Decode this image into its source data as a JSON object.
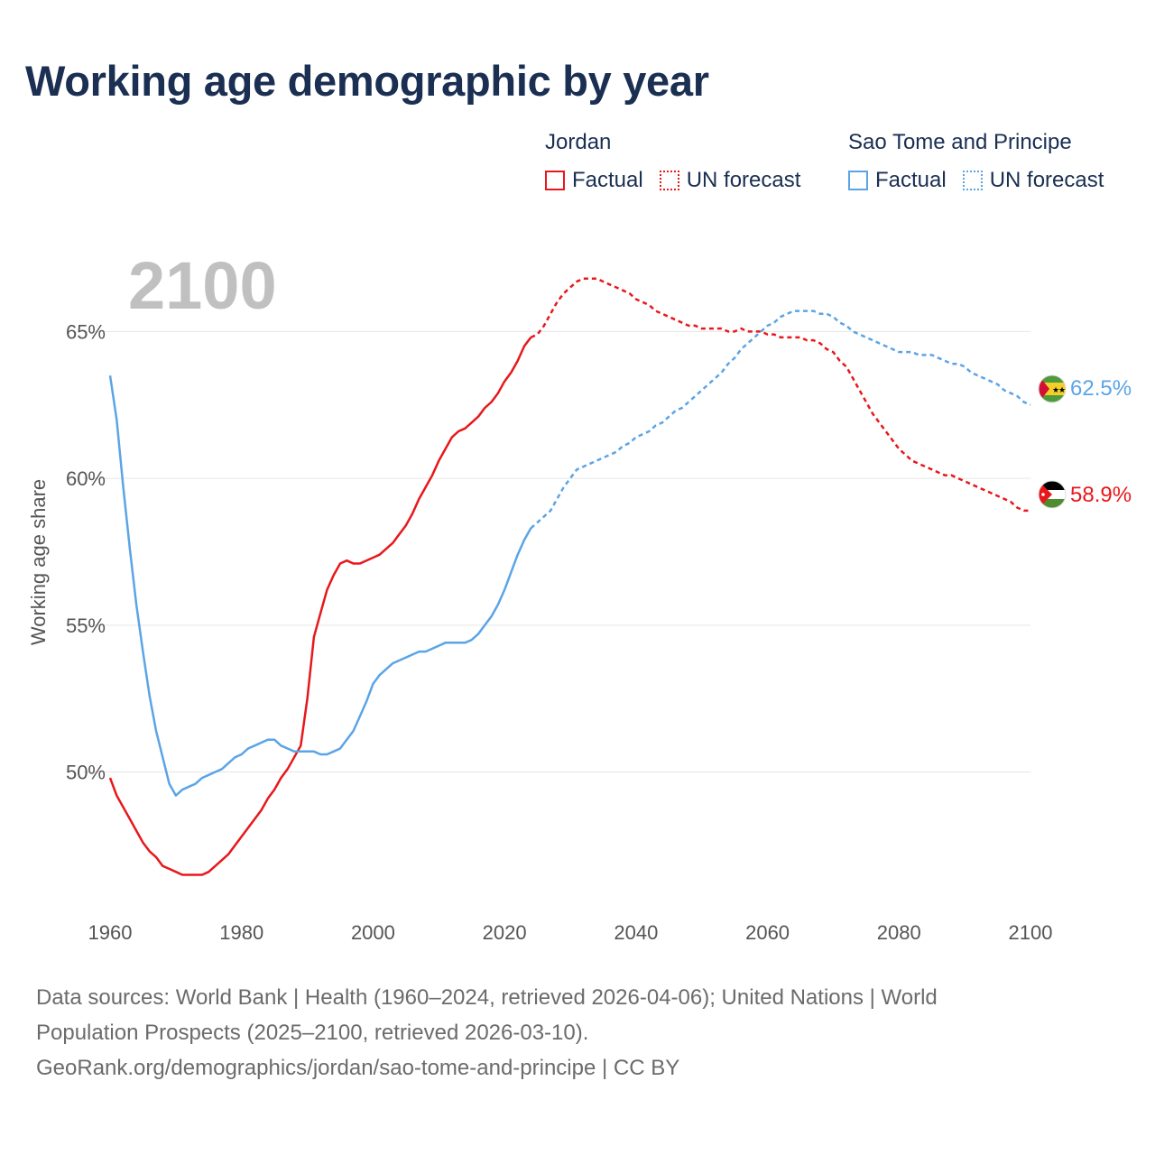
{
  "title": "Working age demographic by year",
  "legend": {
    "groups": [
      {
        "name": "Jordan",
        "color": "#e8171b",
        "factual": "Factual",
        "forecast": "UN forecast"
      },
      {
        "name": "Sao Tome and Principe",
        "color": "#5ba4e6",
        "factual": "Factual",
        "forecast": "UN forecast"
      }
    ]
  },
  "year_watermark": "2100",
  "footer": {
    "line1": "Data sources: World Bank | Health (1960–2024, retrieved 2026-04-06); United Nations | World",
    "line2": "Population Prospects (2025–2100, retrieved 2026-03-10).",
    "line3": "GeoRank.org/demographics/jordan/sao-tome-and-principe | CC BY"
  },
  "chart_data": {
    "type": "line",
    "title": "Working age demographic by year",
    "xlabel": "",
    "ylabel": "Working age share",
    "xlim": [
      1960,
      2100
    ],
    "ylim": [
      45.5,
      67.5
    ],
    "x_ticks": [
      1960,
      1980,
      2000,
      2020,
      2040,
      2060,
      2080,
      2100
    ],
    "y_ticks": [
      50,
      55,
      60,
      65
    ],
    "y_tick_labels": [
      "50%",
      "55%",
      "60%",
      "65%"
    ],
    "grid": true,
    "factual_end_year": 2024,
    "series": [
      {
        "name": "Jordan",
        "color": "#e8171b",
        "flag": "jordan",
        "end_label": "58.9%",
        "points": [
          [
            1960,
            49.8
          ],
          [
            1961,
            49.2
          ],
          [
            1962,
            48.8
          ],
          [
            1963,
            48.4
          ],
          [
            1964,
            48.0
          ],
          [
            1965,
            47.6
          ],
          [
            1966,
            47.3
          ],
          [
            1967,
            47.1
          ],
          [
            1968,
            46.8
          ],
          [
            1969,
            46.7
          ],
          [
            1970,
            46.6
          ],
          [
            1971,
            46.5
          ],
          [
            1972,
            46.5
          ],
          [
            1973,
            46.5
          ],
          [
            1974,
            46.5
          ],
          [
            1975,
            46.6
          ],
          [
            1976,
            46.8
          ],
          [
            1977,
            47.0
          ],
          [
            1978,
            47.2
          ],
          [
            1979,
            47.5
          ],
          [
            1980,
            47.8
          ],
          [
            1981,
            48.1
          ],
          [
            1982,
            48.4
          ],
          [
            1983,
            48.7
          ],
          [
            1984,
            49.1
          ],
          [
            1985,
            49.4
          ],
          [
            1986,
            49.8
          ],
          [
            1987,
            50.1
          ],
          [
            1988,
            50.5
          ],
          [
            1989,
            50.9
          ],
          [
            1990,
            52.5
          ],
          [
            1991,
            54.6
          ],
          [
            1992,
            55.4
          ],
          [
            1993,
            56.2
          ],
          [
            1994,
            56.7
          ],
          [
            1995,
            57.1
          ],
          [
            1996,
            57.2
          ],
          [
            1997,
            57.1
          ],
          [
            1998,
            57.1
          ],
          [
            1999,
            57.2
          ],
          [
            2000,
            57.3
          ],
          [
            2001,
            57.4
          ],
          [
            2002,
            57.6
          ],
          [
            2003,
            57.8
          ],
          [
            2004,
            58.1
          ],
          [
            2005,
            58.4
          ],
          [
            2006,
            58.8
          ],
          [
            2007,
            59.3
          ],
          [
            2008,
            59.7
          ],
          [
            2009,
            60.1
          ],
          [
            2010,
            60.6
          ],
          [
            2011,
            61.0
          ],
          [
            2012,
            61.4
          ],
          [
            2013,
            61.6
          ],
          [
            2014,
            61.7
          ],
          [
            2015,
            61.9
          ],
          [
            2016,
            62.1
          ],
          [
            2017,
            62.4
          ],
          [
            2018,
            62.6
          ],
          [
            2019,
            62.9
          ],
          [
            2020,
            63.3
          ],
          [
            2021,
            63.6
          ],
          [
            2022,
            64.0
          ],
          [
            2023,
            64.5
          ],
          [
            2024,
            64.8
          ],
          [
            2025,
            64.9
          ],
          [
            2026,
            65.2
          ],
          [
            2027,
            65.6
          ],
          [
            2028,
            66.0
          ],
          [
            2029,
            66.3
          ],
          [
            2030,
            66.5
          ],
          [
            2031,
            66.7
          ],
          [
            2032,
            66.8
          ],
          [
            2033,
            66.8
          ],
          [
            2034,
            66.8
          ],
          [
            2035,
            66.7
          ],
          [
            2036,
            66.6
          ],
          [
            2037,
            66.5
          ],
          [
            2038,
            66.4
          ],
          [
            2039,
            66.3
          ],
          [
            2040,
            66.1
          ],
          [
            2041,
            66.0
          ],
          [
            2042,
            65.9
          ],
          [
            2043,
            65.7
          ],
          [
            2044,
            65.6
          ],
          [
            2045,
            65.5
          ],
          [
            2046,
            65.4
          ],
          [
            2047,
            65.3
          ],
          [
            2048,
            65.2
          ],
          [
            2049,
            65.2
          ],
          [
            2050,
            65.1
          ],
          [
            2051,
            65.1
          ],
          [
            2052,
            65.1
          ],
          [
            2053,
            65.1
          ],
          [
            2054,
            65.0
          ],
          [
            2055,
            65.0
          ],
          [
            2056,
            65.1
          ],
          [
            2057,
            65.0
          ],
          [
            2058,
            65.0
          ],
          [
            2059,
            65.0
          ],
          [
            2060,
            64.9
          ],
          [
            2061,
            64.9
          ],
          [
            2062,
            64.8
          ],
          [
            2063,
            64.8
          ],
          [
            2064,
            64.8
          ],
          [
            2065,
            64.8
          ],
          [
            2066,
            64.7
          ],
          [
            2067,
            64.7
          ],
          [
            2068,
            64.6
          ],
          [
            2069,
            64.4
          ],
          [
            2070,
            64.3
          ],
          [
            2071,
            64.0
          ],
          [
            2072,
            63.8
          ],
          [
            2073,
            63.4
          ],
          [
            2074,
            63.0
          ],
          [
            2075,
            62.6
          ],
          [
            2076,
            62.2
          ],
          [
            2077,
            61.9
          ],
          [
            2078,
            61.6
          ],
          [
            2079,
            61.3
          ],
          [
            2080,
            61.0
          ],
          [
            2081,
            60.8
          ],
          [
            2082,
            60.6
          ],
          [
            2083,
            60.5
          ],
          [
            2084,
            60.4
          ],
          [
            2085,
            60.3
          ],
          [
            2086,
            60.2
          ],
          [
            2087,
            60.1
          ],
          [
            2088,
            60.1
          ],
          [
            2089,
            60.0
          ],
          [
            2090,
            59.9
          ],
          [
            2091,
            59.8
          ],
          [
            2092,
            59.7
          ],
          [
            2093,
            59.6
          ],
          [
            2094,
            59.5
          ],
          [
            2095,
            59.4
          ],
          [
            2096,
            59.3
          ],
          [
            2097,
            59.2
          ],
          [
            2098,
            59.0
          ],
          [
            2099,
            58.9
          ],
          [
            2100,
            58.9
          ]
        ]
      },
      {
        "name": "Sao Tome and Principe",
        "color": "#5ba4e6",
        "flag": "sao-tome-and-principe",
        "end_label": "62.5%",
        "points": [
          [
            1960,
            63.5
          ],
          [
            1961,
            62.0
          ],
          [
            1962,
            59.7
          ],
          [
            1963,
            57.6
          ],
          [
            1964,
            55.7
          ],
          [
            1965,
            54.1
          ],
          [
            1966,
            52.6
          ],
          [
            1967,
            51.4
          ],
          [
            1968,
            50.5
          ],
          [
            1969,
            49.6
          ],
          [
            1970,
            49.2
          ],
          [
            1971,
            49.4
          ],
          [
            1972,
            49.5
          ],
          [
            1973,
            49.6
          ],
          [
            1974,
            49.8
          ],
          [
            1975,
            49.9
          ],
          [
            1976,
            50.0
          ],
          [
            1977,
            50.1
          ],
          [
            1978,
            50.3
          ],
          [
            1979,
            50.5
          ],
          [
            1980,
            50.6
          ],
          [
            1981,
            50.8
          ],
          [
            1982,
            50.9
          ],
          [
            1983,
            51.0
          ],
          [
            1984,
            51.1
          ],
          [
            1985,
            51.1
          ],
          [
            1986,
            50.9
          ],
          [
            1987,
            50.8
          ],
          [
            1988,
            50.7
          ],
          [
            1989,
            50.7
          ],
          [
            1990,
            50.7
          ],
          [
            1991,
            50.7
          ],
          [
            1992,
            50.6
          ],
          [
            1993,
            50.6
          ],
          [
            1994,
            50.7
          ],
          [
            1995,
            50.8
          ],
          [
            1996,
            51.1
          ],
          [
            1997,
            51.4
          ],
          [
            1998,
            51.9
          ],
          [
            1999,
            52.4
          ],
          [
            2000,
            53.0
          ],
          [
            2001,
            53.3
          ],
          [
            2002,
            53.5
          ],
          [
            2003,
            53.7
          ],
          [
            2004,
            53.8
          ],
          [
            2005,
            53.9
          ],
          [
            2006,
            54.0
          ],
          [
            2007,
            54.1
          ],
          [
            2008,
            54.1
          ],
          [
            2009,
            54.2
          ],
          [
            2010,
            54.3
          ],
          [
            2011,
            54.4
          ],
          [
            2012,
            54.4
          ],
          [
            2013,
            54.4
          ],
          [
            2014,
            54.4
          ],
          [
            2015,
            54.5
          ],
          [
            2016,
            54.7
          ],
          [
            2017,
            55.0
          ],
          [
            2018,
            55.3
          ],
          [
            2019,
            55.7
          ],
          [
            2020,
            56.2
          ],
          [
            2021,
            56.8
          ],
          [
            2022,
            57.4
          ],
          [
            2023,
            57.9
          ],
          [
            2024,
            58.3
          ],
          [
            2025,
            58.5
          ],
          [
            2026,
            58.7
          ],
          [
            2027,
            58.9
          ],
          [
            2028,
            59.3
          ],
          [
            2029,
            59.7
          ],
          [
            2030,
            60.0
          ],
          [
            2031,
            60.3
          ],
          [
            2032,
            60.4
          ],
          [
            2033,
            60.5
          ],
          [
            2034,
            60.6
          ],
          [
            2035,
            60.7
          ],
          [
            2036,
            60.8
          ],
          [
            2037,
            60.9
          ],
          [
            2038,
            61.1
          ],
          [
            2039,
            61.2
          ],
          [
            2040,
            61.4
          ],
          [
            2041,
            61.5
          ],
          [
            2042,
            61.6
          ],
          [
            2043,
            61.8
          ],
          [
            2044,
            61.9
          ],
          [
            2045,
            62.1
          ],
          [
            2046,
            62.3
          ],
          [
            2047,
            62.4
          ],
          [
            2048,
            62.6
          ],
          [
            2049,
            62.8
          ],
          [
            2050,
            63.0
          ],
          [
            2051,
            63.2
          ],
          [
            2052,
            63.4
          ],
          [
            2053,
            63.6
          ],
          [
            2054,
            63.9
          ],
          [
            2055,
            64.1
          ],
          [
            2056,
            64.4
          ],
          [
            2057,
            64.6
          ],
          [
            2058,
            64.8
          ],
          [
            2059,
            65.0
          ],
          [
            2060,
            65.2
          ],
          [
            2061,
            65.3
          ],
          [
            2062,
            65.5
          ],
          [
            2063,
            65.6
          ],
          [
            2064,
            65.7
          ],
          [
            2065,
            65.7
          ],
          [
            2066,
            65.7
          ],
          [
            2067,
            65.7
          ],
          [
            2068,
            65.6
          ],
          [
            2069,
            65.6
          ],
          [
            2070,
            65.5
          ],
          [
            2071,
            65.3
          ],
          [
            2072,
            65.2
          ],
          [
            2073,
            65.0
          ],
          [
            2074,
            64.9
          ],
          [
            2075,
            64.8
          ],
          [
            2076,
            64.7
          ],
          [
            2077,
            64.6
          ],
          [
            2078,
            64.5
          ],
          [
            2079,
            64.4
          ],
          [
            2080,
            64.3
          ],
          [
            2081,
            64.3
          ],
          [
            2082,
            64.3
          ],
          [
            2083,
            64.2
          ],
          [
            2084,
            64.2
          ],
          [
            2085,
            64.2
          ],
          [
            2086,
            64.1
          ],
          [
            2087,
            64.0
          ],
          [
            2088,
            63.9
          ],
          [
            2089,
            63.9
          ],
          [
            2090,
            63.8
          ],
          [
            2091,
            63.6
          ],
          [
            2092,
            63.5
          ],
          [
            2093,
            63.4
          ],
          [
            2094,
            63.3
          ],
          [
            2095,
            63.2
          ],
          [
            2096,
            63.0
          ],
          [
            2097,
            62.9
          ],
          [
            2098,
            62.8
          ],
          [
            2099,
            62.6
          ],
          [
            2100,
            62.5
          ]
        ]
      }
    ]
  }
}
